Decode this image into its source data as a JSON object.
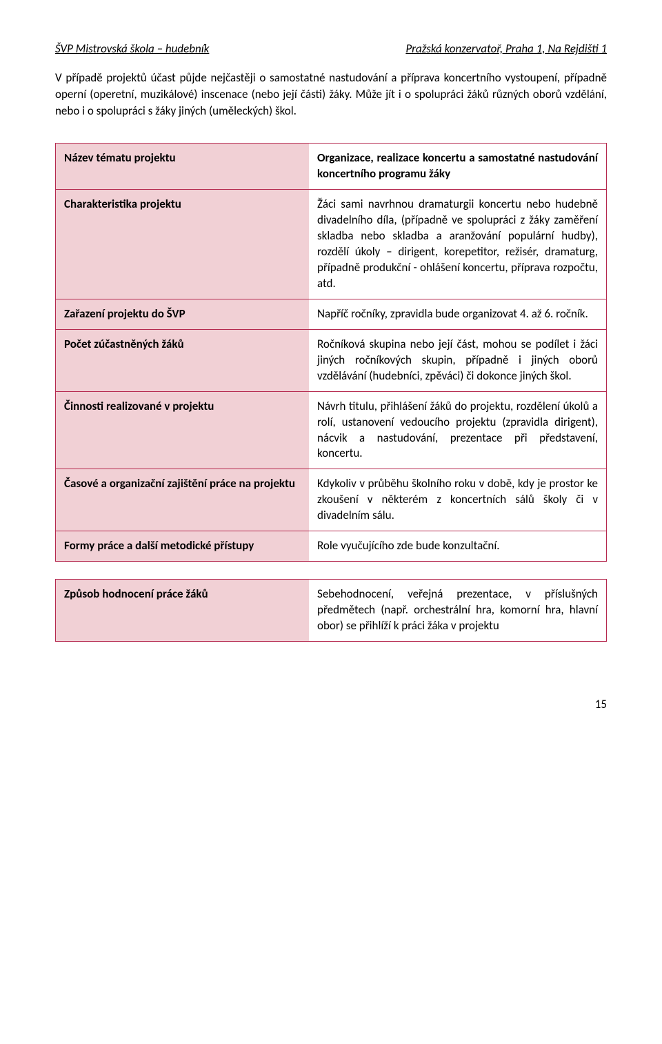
{
  "header": {
    "left": "ŠVP  Mistrovská škola – hudebník",
    "right": "Pražská konzervatoř, Praha 1, Na Rejdišti 1"
  },
  "intro": "V případě projektů účast půjde nejčastěji o samostatné nastudování a příprava koncertního vystoupení, případně operní (operetní, muzikálové) inscenace (nebo její části) žáky. Může jít i o spolupráci žáků různých oborů vzdělání, nebo i o spolupráci s žáky jiných (uměleckých) škol.",
  "table1": {
    "rows": [
      {
        "label": "Název tématu projektu",
        "value": "Organizace, realizace koncertu a samostatné nastudování koncertního programu žáky",
        "head": true
      },
      {
        "label": "Charakteristika projektu",
        "value": "Žáci sami navrhnou dramaturgii koncertu nebo hudebně divadelního díla, (případně ve spolupráci z žáky zaměření skladba nebo skladba a aranžování populární hudby), rozdělí úkoly – dirigent, korepetitor, režisér, dramaturg, případně produkční - ohlášení koncertu, příprava rozpočtu, atd."
      },
      {
        "label": "Zařazení projektu do ŠVP",
        "value": "Napříč ročníky, zpravidla bude organizovat 4. až 6. ročník."
      },
      {
        "label": "Počet zúčastněných žáků",
        "value": "Ročníková skupina nebo její část, mohou se podílet i žáci jiných ročníkových skupin, případně i jiných oborů vzdělávání (hudebníci, zpěváci) či dokonce jiných škol."
      },
      {
        "label": "Činnosti realizované v projektu",
        "value": "Návrh titulu, přihlášení žáků do projektu, rozdělení úkolů a rolí, ustanovení vedoucího projektu (zpravidla dirigent), nácvik a nastudování, prezentace při představení, koncertu."
      },
      {
        "label": "Časové a organizační zajištění práce na projektu",
        "value": "Kdykoliv v průběhu školního roku v době, kdy je prostor ke zkoušení v některém z koncertních sálů školy či v divadelním sálu."
      },
      {
        "label": "Formy práce a další metodické přístupy",
        "value": "Role vyučujícího zde bude konzultační."
      }
    ]
  },
  "table2": {
    "rows": [
      {
        "label": "Způsob hodnocení práce žáků",
        "value": "Sebehodnocení, veřejná prezentace, v příslušných předmětech (např. orchestrální hra, komorní hra, hlavní obor) se přihlíží k práci žáka v projektu"
      }
    ]
  },
  "page_number": "15",
  "colors": {
    "border": "#b5284e",
    "leftcell_bg": "#f1d0d5",
    "page_bg": "#ffffff",
    "text": "#000000"
  }
}
